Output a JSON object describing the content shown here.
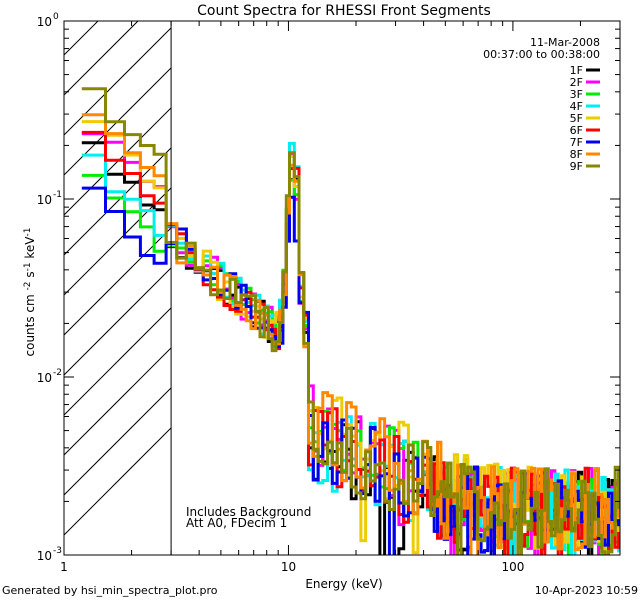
{
  "chart_data": {
    "type": "line",
    "title": "Count Spectra for RHESSI Front Segments",
    "xlabel": "Energy (keV)",
    "ylabel": "counts cm",
    "ylabel_full": "counts cm^-2 s^-1 keV^-1",
    "xscale": "log",
    "yscale": "log",
    "xlim": [
      1,
      300
    ],
    "ylim": [
      0.001,
      1
    ],
    "x_ticks": [
      {
        "value": 1,
        "label": "1"
      },
      {
        "value": 10,
        "label": "10"
      },
      {
        "value": 100,
        "label": "100"
      }
    ],
    "y_ticks": [
      {
        "value": 0.001,
        "label": "10",
        "exp": "-3"
      },
      {
        "value": 0.01,
        "label": "10",
        "exp": "-2"
      },
      {
        "value": 0.1,
        "label": "10",
        "exp": "-1"
      },
      {
        "value": 1,
        "label": "10",
        "exp": "0"
      }
    ],
    "hatched_region_upper_kev": 3,
    "date": "11-Mar-2008",
    "time_range": "00:37:00 to 00:38:00",
    "annotations": [
      "Includes Background",
      "Att A0, FDecim 1"
    ],
    "series": [
      {
        "name": "1F",
        "color": "#000000",
        "peak": 0.14,
        "low_start": 0.23,
        "tail_level": 0.0033
      },
      {
        "name": "2F",
        "color": "#ff00ff",
        "peak": 0.16,
        "low_start": 0.3,
        "tail_level": 0.004
      },
      {
        "name": "3F",
        "color": "#00ee00",
        "peak": 0.15,
        "low_start": 0.16,
        "tail_level": 0.0038
      },
      {
        "name": "4F",
        "color": "#00eeee",
        "peak": 0.2,
        "low_start": 0.19,
        "tail_level": 0.0036
      },
      {
        "name": "5F",
        "color": "#eecc00",
        "peak": 0.13,
        "low_start": 0.34,
        "tail_level": 0.0042
      },
      {
        "name": "6F",
        "color": "#ff0000",
        "peak": 0.15,
        "low_start": 0.27,
        "tail_level": 0.0034
      },
      {
        "name": "7F",
        "color": "#0000ee",
        "peak": 0.075,
        "low_start": 0.12,
        "tail_level": 0.0035
      },
      {
        "name": "8F",
        "color": "#ff8800",
        "peak": 0.17,
        "low_start": 0.36,
        "tail_level": 0.004
      },
      {
        "name": "9F",
        "color": "#888800",
        "peak": 0.16,
        "low_start": 0.46,
        "tail_level": 0.0037
      }
    ]
  },
  "footer": {
    "generator": "Generated by hsi_min_spectra_plot.pro",
    "timestamp": "10-Apr-2023 10:59"
  }
}
